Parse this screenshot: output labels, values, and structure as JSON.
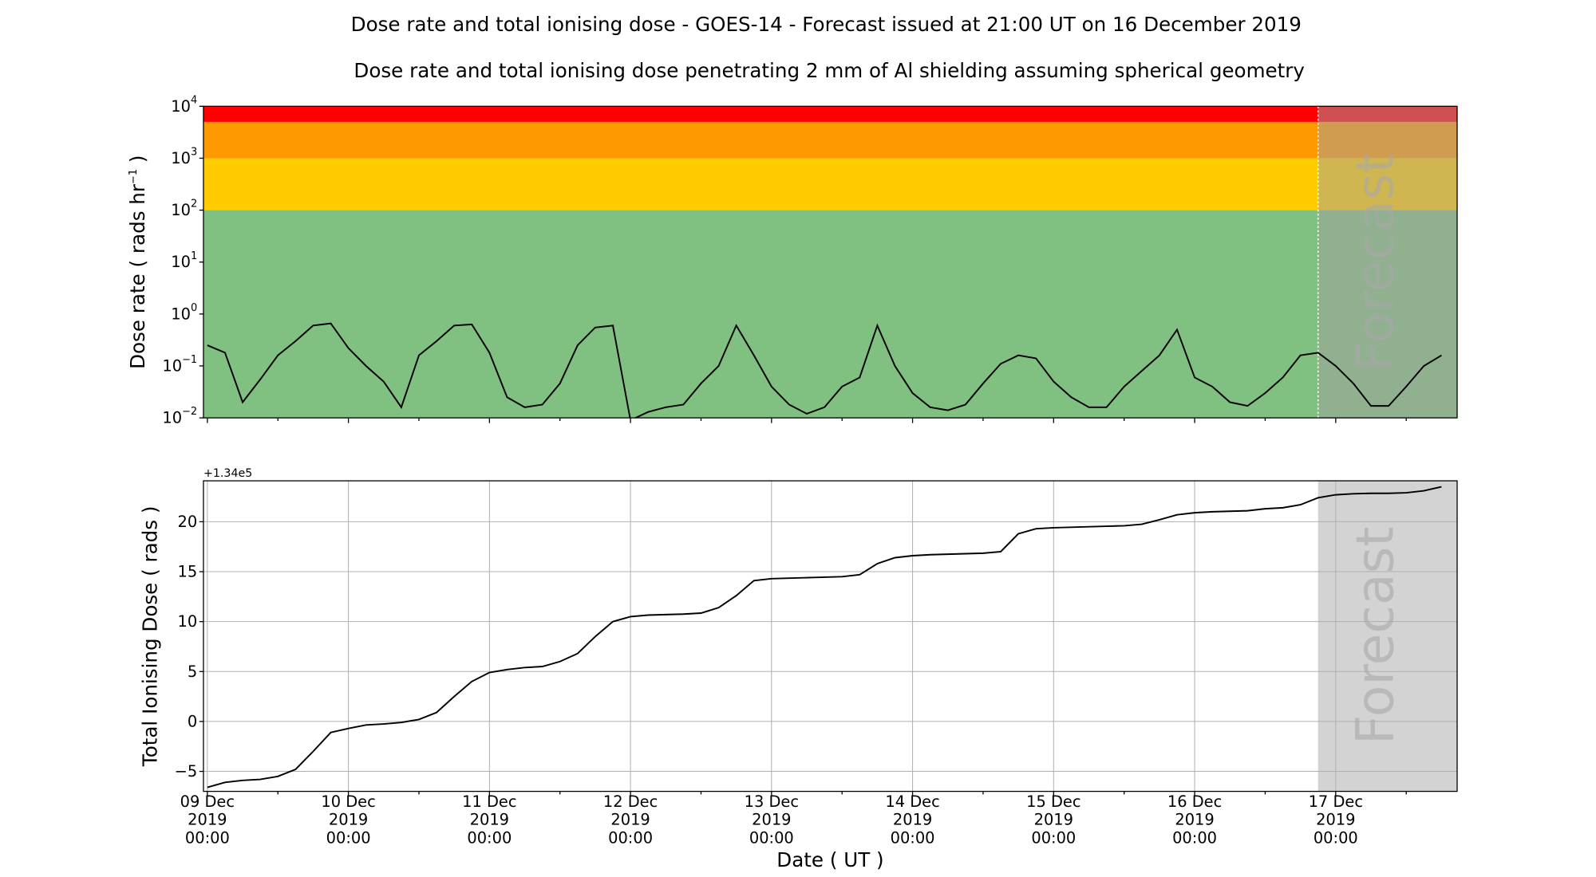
{
  "chart_data": [
    {
      "type": "line",
      "title": "Dose rate and total ionising dose - GOES-14 - Forecast issued at 21:00 UT on 16 December 2019",
      "subtitle": "Dose rate and total ionising dose penetrating 2 mm of Al shielding assuming spherical geometry",
      "ylabel": {
        "text": "Dose rate ( rads hr",
        "sup": "−1",
        "suffix": " )"
      },
      "log_y": true,
      "grid": false,
      "color": "#000000",
      "xlim": [
        "2019-12-08 23:20",
        "2019-12-17 20:40"
      ],
      "xticks": [
        "2019-12-09 00:00",
        "2019-12-10 00:00",
        "2019-12-11 00:00",
        "2019-12-12 00:00",
        "2019-12-13 00:00",
        "2019-12-14 00:00",
        "2019-12-15 00:00",
        "2019-12-16 00:00",
        "2019-12-17 00:00"
      ],
      "xticks_minor": [
        "2019-12-09 12:00",
        "2019-12-10 12:00",
        "2019-12-11 12:00",
        "2019-12-12 12:00",
        "2019-12-13 12:00",
        "2019-12-14 12:00",
        "2019-12-15 12:00",
        "2019-12-16 12:00",
        "2019-12-17 12:00"
      ],
      "ylim": [
        0.01,
        10000
      ],
      "yticks": [
        {
          "value": 0.01,
          "label": "10",
          "exponent": "−2"
        },
        {
          "value": 0.1,
          "label": "10",
          "exponent": "−1"
        },
        {
          "value": 1,
          "label": "10",
          "exponent": "0"
        },
        {
          "value": 10,
          "label": "10",
          "exponent": "1"
        },
        {
          "value": 100,
          "label": "10",
          "exponent": "2"
        },
        {
          "value": 1000,
          "label": "10",
          "exponent": "3"
        },
        {
          "value": 10000,
          "label": "10",
          "exponent": "4"
        }
      ],
      "bands": [
        {
          "from": 0.01,
          "to": 100,
          "color": "#80c080"
        },
        {
          "from": 100,
          "to": 1000,
          "color": "#ffcc00"
        },
        {
          "from": 1000,
          "to": 5000,
          "color": "#ff9900"
        },
        {
          "from": 5000,
          "to": 10000,
          "color": "#ff0000"
        }
      ],
      "forecast_start": "2019-12-16 21:00",
      "forecast_label": "Forecast",
      "forecast_color": "#a0a0a0",
      "forecast_alpha": 0.5,
      "forecast_line_color": "#ffffff",
      "x": [
        "2019-12-09 00:00",
        "2019-12-09 03:00",
        "2019-12-09 06:00",
        "2019-12-09 09:00",
        "2019-12-09 12:00",
        "2019-12-09 15:00",
        "2019-12-09 18:00",
        "2019-12-09 21:00",
        "2019-12-10 00:00",
        "2019-12-10 03:00",
        "2019-12-10 06:00",
        "2019-12-10 09:00",
        "2019-12-10 12:00",
        "2019-12-10 15:00",
        "2019-12-10 18:00",
        "2019-12-10 21:00",
        "2019-12-11 00:00",
        "2019-12-11 03:00",
        "2019-12-11 06:00",
        "2019-12-11 09:00",
        "2019-12-11 12:00",
        "2019-12-11 15:00",
        "2019-12-11 18:00",
        "2019-12-11 21:00",
        "2019-12-12 00:00",
        "2019-12-12 03:00",
        "2019-12-12 06:00",
        "2019-12-12 09:00",
        "2019-12-12 12:00",
        "2019-12-12 15:00",
        "2019-12-12 18:00",
        "2019-12-12 21:00",
        "2019-12-13 00:00",
        "2019-12-13 03:00",
        "2019-12-13 06:00",
        "2019-12-13 09:00",
        "2019-12-13 12:00",
        "2019-12-13 15:00",
        "2019-12-13 18:00",
        "2019-12-13 21:00",
        "2019-12-14 00:00",
        "2019-12-14 03:00",
        "2019-12-14 06:00",
        "2019-12-14 09:00",
        "2019-12-14 12:00",
        "2019-12-14 15:00",
        "2019-12-14 18:00",
        "2019-12-14 21:00",
        "2019-12-15 00:00",
        "2019-12-15 03:00",
        "2019-12-15 06:00",
        "2019-12-15 09:00",
        "2019-12-15 12:00",
        "2019-12-15 15:00",
        "2019-12-15 18:00",
        "2019-12-15 21:00",
        "2019-12-16 00:00",
        "2019-12-16 03:00",
        "2019-12-16 06:00",
        "2019-12-16 09:00",
        "2019-12-16 12:00",
        "2019-12-16 15:00",
        "2019-12-16 18:00",
        "2019-12-16 21:00",
        "2019-12-17 00:00",
        "2019-12-17 03:00",
        "2019-12-17 06:00",
        "2019-12-17 09:00",
        "2019-12-17 12:00",
        "2019-12-17 15:00",
        "2019-12-17 18:00"
      ],
      "values": [
        0.25,
        0.18,
        0.02,
        0.055,
        0.16,
        0.3,
        0.6,
        0.66,
        0.22,
        0.1,
        0.05,
        0.016,
        0.16,
        0.3,
        0.6,
        0.63,
        0.18,
        0.025,
        0.016,
        0.018,
        0.046,
        0.25,
        0.55,
        0.6,
        0.009,
        0.013,
        0.016,
        0.018,
        0.046,
        0.1,
        0.6,
        0.16,
        0.04,
        0.018,
        0.012,
        0.016,
        0.04,
        0.06,
        0.6,
        0.1,
        0.03,
        0.016,
        0.014,
        0.018,
        0.046,
        0.11,
        0.16,
        0.14,
        0.05,
        0.025,
        0.016,
        0.016,
        0.04,
        0.08,
        0.16,
        0.5,
        0.06,
        0.04,
        0.02,
        0.017,
        0.03,
        0.06,
        0.16,
        0.18,
        0.1,
        0.046,
        0.017,
        0.017,
        0.04,
        0.1,
        0.16
      ]
    },
    {
      "type": "line",
      "ylabel": {
        "text": "Total Ionising Dose ( rads )"
      },
      "xlabel": "Date ( UT )",
      "offset_label": "+1.34e5",
      "log_y": false,
      "grid": true,
      "color": "#000000",
      "xlim": [
        "2019-12-08 23:20",
        "2019-12-17 20:40"
      ],
      "xticks": [
        {
          "value": "2019-12-09 00:00",
          "label": [
            "09 Dec",
            "2019",
            "00:00"
          ]
        },
        {
          "value": "2019-12-10 00:00",
          "label": [
            "10 Dec",
            "2019",
            "00:00"
          ]
        },
        {
          "value": "2019-12-11 00:00",
          "label": [
            "11 Dec",
            "2019",
            "00:00"
          ]
        },
        {
          "value": "2019-12-12 00:00",
          "label": [
            "12 Dec",
            "2019",
            "00:00"
          ]
        },
        {
          "value": "2019-12-13 00:00",
          "label": [
            "13 Dec",
            "2019",
            "00:00"
          ]
        },
        {
          "value": "2019-12-14 00:00",
          "label": [
            "14 Dec",
            "2019",
            "00:00"
          ]
        },
        {
          "value": "2019-12-15 00:00",
          "label": [
            "15 Dec",
            "2019",
            "00:00"
          ]
        },
        {
          "value": "2019-12-16 00:00",
          "label": [
            "16 Dec",
            "2019",
            "00:00"
          ]
        },
        {
          "value": "2019-12-17 00:00",
          "label": [
            "17 Dec",
            "2019",
            "00:00"
          ]
        }
      ],
      "xticks_minor": [
        "2019-12-09 12:00",
        "2019-12-10 12:00",
        "2019-12-11 12:00",
        "2019-12-12 12:00",
        "2019-12-13 12:00",
        "2019-12-14 12:00",
        "2019-12-15 12:00",
        "2019-12-16 12:00",
        "2019-12-17 12:00"
      ],
      "ylim": [
        -7,
        24.1
      ],
      "yticks": [
        {
          "value": -5,
          "label": "−5"
        },
        0,
        5,
        10,
        15,
        20
      ],
      "forecast_start": "2019-12-16 21:00",
      "forecast_label": "Forecast",
      "forecast_color": "#d3d3d3",
      "forecast_alpha": 1,
      "x": [
        "2019-12-09 00:00",
        "2019-12-09 03:00",
        "2019-12-09 06:00",
        "2019-12-09 09:00",
        "2019-12-09 12:00",
        "2019-12-09 15:00",
        "2019-12-09 18:00",
        "2019-12-09 21:00",
        "2019-12-10 00:00",
        "2019-12-10 03:00",
        "2019-12-10 06:00",
        "2019-12-10 09:00",
        "2019-12-10 12:00",
        "2019-12-10 15:00",
        "2019-12-10 18:00",
        "2019-12-10 21:00",
        "2019-12-11 00:00",
        "2019-12-11 03:00",
        "2019-12-11 06:00",
        "2019-12-11 09:00",
        "2019-12-11 12:00",
        "2019-12-11 15:00",
        "2019-12-11 18:00",
        "2019-12-11 21:00",
        "2019-12-12 00:00",
        "2019-12-12 03:00",
        "2019-12-12 06:00",
        "2019-12-12 09:00",
        "2019-12-12 12:00",
        "2019-12-12 15:00",
        "2019-12-12 18:00",
        "2019-12-12 21:00",
        "2019-12-13 00:00",
        "2019-12-13 03:00",
        "2019-12-13 06:00",
        "2019-12-13 09:00",
        "2019-12-13 12:00",
        "2019-12-13 15:00",
        "2019-12-13 18:00",
        "2019-12-13 21:00",
        "2019-12-14 00:00",
        "2019-12-14 03:00",
        "2019-12-14 06:00",
        "2019-12-14 09:00",
        "2019-12-14 12:00",
        "2019-12-14 15:00",
        "2019-12-14 18:00",
        "2019-12-14 21:00",
        "2019-12-15 00:00",
        "2019-12-15 03:00",
        "2019-12-15 06:00",
        "2019-12-15 09:00",
        "2019-12-15 12:00",
        "2019-12-15 15:00",
        "2019-12-15 18:00",
        "2019-12-15 21:00",
        "2019-12-16 00:00",
        "2019-12-16 03:00",
        "2019-12-16 06:00",
        "2019-12-16 09:00",
        "2019-12-16 12:00",
        "2019-12-16 15:00",
        "2019-12-16 18:00",
        "2019-12-16 21:00",
        "2019-12-17 00:00",
        "2019-12-17 03:00",
        "2019-12-17 06:00",
        "2019-12-17 09:00",
        "2019-12-17 12:00",
        "2019-12-17 15:00",
        "2019-12-17 18:00"
      ],
      "values": [
        -6.6,
        -6.1,
        -5.9,
        -5.8,
        -5.5,
        -4.8,
        -3.0,
        -1.1,
        -0.7,
        -0.35,
        -0.25,
        -0.1,
        0.2,
        0.9,
        2.5,
        4.0,
        4.9,
        5.2,
        5.4,
        5.5,
        6.0,
        6.8,
        8.5,
        10.0,
        10.5,
        10.65,
        10.7,
        10.75,
        10.85,
        11.4,
        12.6,
        14.1,
        14.3,
        14.35,
        14.4,
        14.45,
        14.5,
        14.7,
        15.8,
        16.4,
        16.6,
        16.7,
        16.75,
        16.8,
        16.85,
        17.0,
        18.8,
        19.3,
        19.4,
        19.45,
        19.5,
        19.55,
        19.6,
        19.75,
        20.2,
        20.7,
        20.9,
        21.0,
        21.05,
        21.1,
        21.3,
        21.4,
        21.7,
        22.4,
        22.7,
        22.8,
        22.85,
        22.85,
        22.9,
        23.1,
        23.5
      ]
    }
  ]
}
